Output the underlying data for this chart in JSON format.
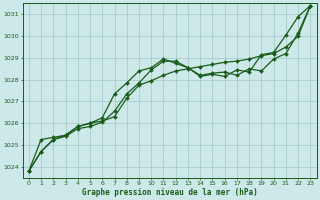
{
  "xlabel": "Graphe pression niveau de la mer (hPa)",
  "bg_color": "#cce8e8",
  "grid_color": "#aacccc",
  "line_color": "#1a5c1a",
  "marker": "D",
  "markersize": 2.0,
  "linewidth": 0.9,
  "ylim": [
    1023.5,
    1031.5
  ],
  "xlim": [
    -0.5,
    23.5
  ],
  "yticks": [
    1024,
    1025,
    1026,
    1027,
    1028,
    1029,
    1030,
    1031
  ],
  "xticks": [
    0,
    1,
    2,
    3,
    4,
    5,
    6,
    7,
    8,
    9,
    10,
    11,
    12,
    13,
    14,
    15,
    16,
    17,
    18,
    19,
    20,
    21,
    22,
    23
  ],
  "series": [
    [
      1023.8,
      1024.7,
      1025.25,
      1025.4,
      1025.75,
      1025.85,
      1026.05,
      1026.55,
      1027.35,
      1027.85,
      1028.45,
      1028.85,
      1028.85,
      1028.55,
      1028.2,
      1028.3,
      1028.35,
      1028.2,
      1028.5,
      1028.4,
      1028.95,
      1029.2,
      1030.15,
      1031.4
    ],
    [
      1023.8,
      1025.25,
      1025.35,
      1025.45,
      1025.85,
      1026.0,
      1026.1,
      1026.3,
      1027.15,
      1027.75,
      1027.95,
      1028.2,
      1028.4,
      1028.5,
      1028.6,
      1028.7,
      1028.8,
      1028.85,
      1028.95,
      1029.1,
      1029.2,
      1029.5,
      1030.0,
      1031.4
    ],
    [
      1023.8,
      1024.7,
      1025.25,
      1025.45,
      1025.85,
      1026.0,
      1026.25,
      1027.35,
      1027.85,
      1028.4,
      1028.55,
      1028.95,
      1028.75,
      1028.55,
      1028.15,
      1028.25,
      1028.15,
      1028.45,
      1028.35,
      1029.15,
      1029.25,
      1030.05,
      1030.9,
      1031.4
    ]
  ]
}
